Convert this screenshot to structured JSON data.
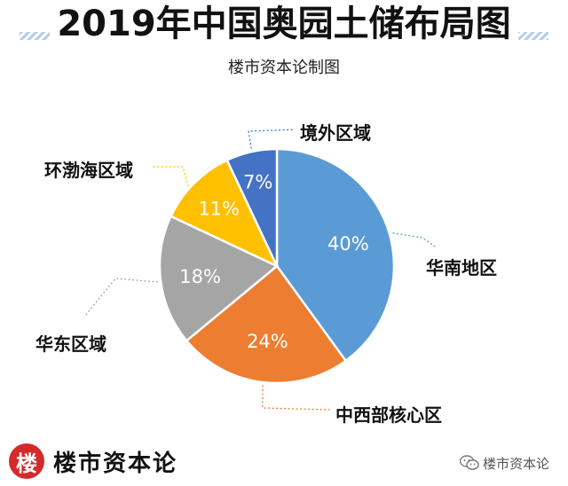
{
  "header": {
    "title": "2019年中国奥园土储布局图",
    "subtitle": "楼市资本论制图"
  },
  "chart_data": {
    "type": "pie",
    "slices": [
      {
        "label": "华南地区",
        "value": 40,
        "value_label": "40%",
        "color": "#5b9bd5"
      },
      {
        "label": "中西部核心区",
        "value": 24,
        "value_label": "24%",
        "color": "#ed7d31"
      },
      {
        "label": "华东区域",
        "value": 18,
        "value_label": "18%",
        "color": "#a5a5a5"
      },
      {
        "label": "环渤海区域",
        "value": 11,
        "value_label": "11%",
        "color": "#ffc000"
      },
      {
        "label": "境外区域",
        "value": 7,
        "value_label": "7%",
        "color": "#4472c4"
      }
    ],
    "start_angle_deg": 0,
    "direction": "clockwise"
  },
  "footer": {
    "logo_char": "楼",
    "brand_name": "楼市资本论",
    "wechat_account": "楼市资本论",
    "logo_color": "#d42a2a",
    "icon": "wechat-icon"
  }
}
